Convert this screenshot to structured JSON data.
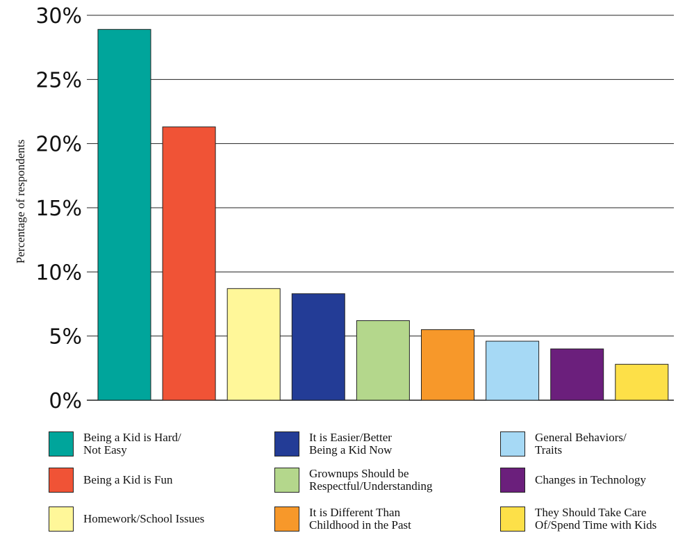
{
  "chart_data": {
    "type": "bar",
    "ylabel": "Percentage of respondents",
    "ylim": [
      0,
      30
    ],
    "yticks": [
      0,
      5,
      10,
      15,
      20,
      25,
      30
    ],
    "ytick_labels": [
      "0%",
      "5%",
      "10%",
      "15%",
      "20%",
      "25%",
      "30%"
    ],
    "grid": true,
    "legend_position": "bottom",
    "categories": [
      "Being a Kid is Hard/\nNot Easy",
      "Being a Kid is Fun",
      "Homework/School Issues",
      "It is Easier/Better\nBeing a Kid Now",
      "Grownups Should be\nRespectful/Understanding",
      "It is Different Than\nChildhood in the Past",
      "General Behaviors/\nTraits",
      "Changes in Technology",
      "They Should Take Care\nOf/Spend Time with Kids"
    ],
    "values": [
      28.9,
      21.3,
      8.7,
      8.3,
      6.2,
      5.5,
      4.6,
      4.0,
      2.8
    ],
    "colors": [
      "#00a59b",
      "#f05336",
      "#fff799",
      "#233c96",
      "#b4d78c",
      "#f7982a",
      "#a6d9f5",
      "#6b1f7c",
      "#fde048"
    ]
  }
}
